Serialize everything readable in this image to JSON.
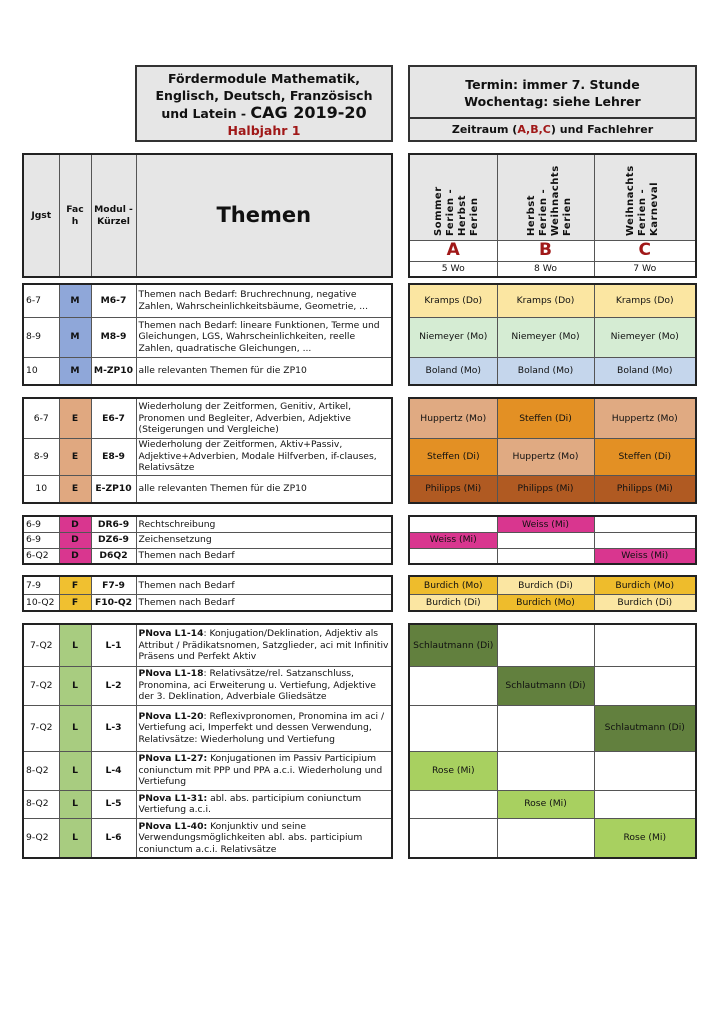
{
  "title": {
    "line1": "Fördermodule Mathematik,",
    "line2": "Englisch, Deutsch, Französisch",
    "line3a": "und Latein - ",
    "line3b": "CAG 2019-20",
    "sub": "Halbjahr 1"
  },
  "termin": {
    "line1": "Termin: immer 7. Stunde",
    "line2": "Wochentag: siehe Lehrer",
    "zeitraum_a": "Zeitraum (",
    "zeitraum_letters": "A,B,C",
    "zeitraum_b": ") und Fachlehrer"
  },
  "headers": {
    "jgst": "Jgst",
    "fach": "Fac h",
    "modul": "Modul - Kürzel",
    "themen": "Themen"
  },
  "periods": [
    {
      "name": "Sommer Ferien - Herbst Ferien",
      "letter": "A",
      "weeks": "5 Wo"
    },
    {
      "name": "Herbst Ferien - Weihnachts Ferien",
      "letter": "B",
      "weeks": "8 Wo"
    },
    {
      "name": "Weihnachts Ferien - Karneval",
      "letter": "C",
      "weeks": "7 Wo"
    }
  ],
  "groups": [
    {
      "fach_color": "#8fa7d9",
      "rows": [
        {
          "jgst": "6-7",
          "fach": "M",
          "modul": "M6-7",
          "bold": "",
          "text": "Themen nach Bedarf: Bruchrechnung, negative Zahlen, Wahrscheinlichkeitsbäume, Geometrie, ...",
          "cells": [
            {
              "t": "Kramps (Do)",
              "c": "#fbe6a2"
            },
            {
              "t": "Kramps (Do)",
              "c": "#fbe6a2"
            },
            {
              "t": "Kramps (Do)",
              "c": "#fbe6a2"
            }
          ]
        },
        {
          "jgst": "8-9",
          "fach": "M",
          "modul": "M8-9",
          "bold": "",
          "text": "Themen nach Bedarf: lineare Funktionen, Terme und Gleichungen, LGS, Wahrscheinlichkeiten, reelle Zahlen, quadratische Gleichungen, ...",
          "cells": [
            {
              "t": "Niemeyer (Mo)",
              "c": "#d5ecd3"
            },
            {
              "t": "Niemeyer (Mo)",
              "c": "#d5ecd3"
            },
            {
              "t": "Niemeyer (Mo)",
              "c": "#d5ecd3"
            }
          ]
        },
        {
          "jgst": "10",
          "fach": "M",
          "modul": "M-ZP10",
          "bold": "",
          "text": "alle relevanten Themen für die ZP10",
          "cells": [
            {
              "t": "Boland (Mo)",
              "c": "#c5d6ec"
            },
            {
              "t": "Boland (Mo)",
              "c": "#c5d6ec"
            },
            {
              "t": "Boland (Mo)",
              "c": "#c5d6ec"
            }
          ]
        }
      ]
    },
    {
      "fach_color": "#e0a880",
      "rows": [
        {
          "jgst": "6-7",
          "fach": "E",
          "modul": "E6-7",
          "bold": "",
          "text": "Wiederholung der Zeitformen, Genitiv, Artikel, Pronomen und Begleiter, Adverbien, Adjektive (Steigerungen und Vergleiche)",
          "cells": [
            {
              "t": "Huppertz (Mo)",
              "c": "#e0aa82"
            },
            {
              "t": "Steffen (Di)",
              "c": "#e39024"
            },
            {
              "t": "Huppertz (Mo)",
              "c": "#e0aa82"
            }
          ]
        },
        {
          "jgst": "8-9",
          "fach": "E",
          "modul": "E8-9",
          "bold": "",
          "text": "Wiederholung der Zeitformen, Aktiv+Passiv, Adjektive+Adverbien, Modale Hilfverben, if-clauses, Relativsätze",
          "cells": [
            {
              "t": "Steffen (Di)",
              "c": "#e39024"
            },
            {
              "t": "Huppertz (Mo)",
              "c": "#e0aa82"
            },
            {
              "t": "Steffen (Di)",
              "c": "#e39024"
            }
          ]
        },
        {
          "jgst": "10",
          "fach": "E",
          "modul": "E-ZP10",
          "bold": "",
          "text": "alle relevanten Themen für die ZP10",
          "cells": [
            {
              "t": "Philipps (Mi)",
              "c": "#b05a22"
            },
            {
              "t": "Philipps (Mi)",
              "c": "#b05a22"
            },
            {
              "t": "Philipps (Mi)",
              "c": "#b05a22"
            }
          ]
        }
      ]
    },
    {
      "fach_color": "#d9368f",
      "rows": [
        {
          "jgst": "6-9",
          "fach": "D",
          "modul": "DR6-9",
          "bold": "",
          "text": "Rechtschreibung",
          "cells": [
            {
              "t": "",
              "c": "#ffffff"
            },
            {
              "t": "Weiss (Mi)",
              "c": "#d9368f"
            },
            {
              "t": "",
              "c": "#ffffff"
            }
          ]
        },
        {
          "jgst": "6-9",
          "fach": "D",
          "modul": "DZ6-9",
          "bold": "",
          "text": "Zeichensetzung",
          "cells": [
            {
              "t": "Weiss (Mi)",
              "c": "#d9368f"
            },
            {
              "t": "",
              "c": "#ffffff"
            },
            {
              "t": "",
              "c": "#ffffff"
            }
          ]
        },
        {
          "jgst": "6-Q2",
          "fach": "D",
          "modul": "D6Q2",
          "bold": "",
          "text": "Themen nach Bedarf",
          "cells": [
            {
              "t": "",
              "c": "#ffffff"
            },
            {
              "t": "",
              "c": "#ffffff"
            },
            {
              "t": "Weiss (Mi)",
              "c": "#d9368f"
            }
          ]
        }
      ]
    },
    {
      "fach_color": "#f0c030",
      "rows": [
        {
          "jgst": "7-9",
          "fach": "F",
          "modul": "F7-9",
          "bold": "",
          "text": "Themen nach Bedarf",
          "cells": [
            {
              "t": "Burdich (Mo)",
              "c": "#eebc2c"
            },
            {
              "t": "Burdich (Di)",
              "c": "#fbe6a2"
            },
            {
              "t": "Burdich (Mo)",
              "c": "#eebc2c"
            }
          ]
        },
        {
          "jgst": "10-Q2",
          "fach": "F",
          "modul": "F10-Q2",
          "bold": "",
          "text": "Themen nach Bedarf",
          "cells": [
            {
              "t": "Burdich (Di)",
              "c": "#fbe6a2"
            },
            {
              "t": "Burdich (Mo)",
              "c": "#eebc2c"
            },
            {
              "t": "Burdich (Di)",
              "c": "#fbe6a2"
            }
          ]
        }
      ]
    },
    {
      "fach_color": "#a8cc80",
      "rows": [
        {
          "jgst": "7-Q2",
          "fach": "L",
          "modul": "L-1",
          "bold": "PNova L1-14",
          "text": ": Konjugation/Deklination, Adjektiv als Attribut / Prädikatsnomen, Satzglieder, aci mit Infinitiv Präsens und Perfekt Aktiv",
          "cells": [
            {
              "t": "Schlautmann (Di)",
              "c": "#62803e"
            },
            {
              "t": "",
              "c": "#ffffff"
            },
            {
              "t": "",
              "c": "#ffffff"
            }
          ]
        },
        {
          "jgst": "7-Q2",
          "fach": "L",
          "modul": "L-2",
          "bold": "PNova L1-18",
          "text": ": Relativsätze/rel. Satzanschluss, Pronomina, aci Erweiterung u. Vertiefung, Adjektive der 3. Deklination, Adverbiale Gliedsätze",
          "cells": [
            {
              "t": "",
              "c": "#ffffff"
            },
            {
              "t": "Schlautmann (Di)",
              "c": "#62803e"
            },
            {
              "t": "",
              "c": "#ffffff"
            }
          ]
        },
        {
          "jgst": "7-Q2",
          "fach": "L",
          "modul": "L-3",
          "bold": "PNova L1-20",
          "text": ": Reflexivpronomen, Pronomina im aci / Vertiefung aci, Imperfekt und dessen Verwendung, Relativsätze: Wiederholung und Vertiefung",
          "cells": [
            {
              "t": "",
              "c": "#ffffff"
            },
            {
              "t": "",
              "c": "#ffffff"
            },
            {
              "t": "Schlautmann (Di)",
              "c": "#62803e"
            }
          ]
        },
        {
          "jgst": "8-Q2",
          "fach": "L",
          "modul": "L-4",
          "bold": "PNova L1-27:",
          "text": " Konjugationen im Passiv Participium coniunctum mit PPP und PPA a.c.i. Wiederholung und Vertiefung",
          "cells": [
            {
              "t": "Rose (Mi)",
              "c": "#a8d060"
            },
            {
              "t": "",
              "c": "#ffffff"
            },
            {
              "t": "",
              "c": "#ffffff"
            }
          ]
        },
        {
          "jgst": "8-Q2",
          "fach": "L",
          "modul": "L-5",
          "bold": "PNova L1-31:",
          "text": " abl. abs. participium coniunctum Vertiefung a.c.i.",
          "cells": [
            {
              "t": "",
              "c": "#ffffff"
            },
            {
              "t": "Rose (Mi)",
              "c": "#a8d060"
            },
            {
              "t": "",
              "c": "#ffffff"
            }
          ]
        },
        {
          "jgst": "9-Q2",
          "fach": "L",
          "modul": "L-6",
          "bold": "PNova L1-40:",
          "text": " Konjunktiv und seine Verwendungsmöglichkeiten abl. abs. participium coniunctum a.c.i. Relativsätze",
          "cells": [
            {
              "t": "",
              "c": "#ffffff"
            },
            {
              "t": "",
              "c": "#ffffff"
            },
            {
              "t": "Rose (Mi)",
              "c": "#a8d060"
            }
          ]
        }
      ]
    }
  ]
}
